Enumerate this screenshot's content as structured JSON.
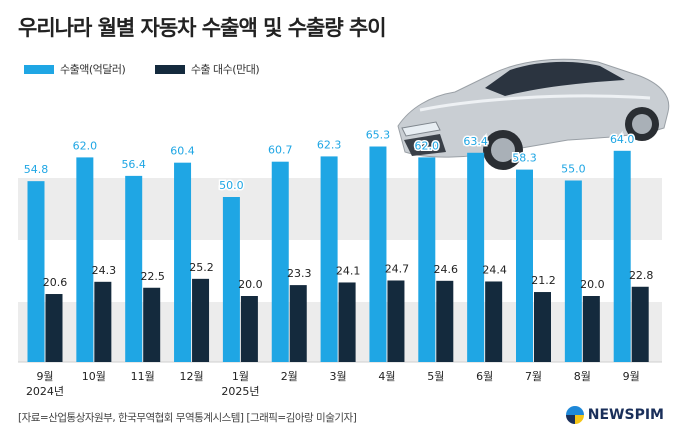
{
  "header": {
    "title": "우리나라 월별 자동차 수출액 및 수출량 추이"
  },
  "legend": [
    {
      "label": "수출액(억달러)",
      "color": "#1fa6e4"
    },
    {
      "label": "수출 대수(만대)",
      "color": "#142a3d"
    }
  ],
  "footer": {
    "source": "[자료=산업통상자원부, 한국무역협회 무역통계시스템] [그래픽=김아랑 미술기자]",
    "logo": "NEWSPIM",
    "logo_colors": {
      "blue": "#1e88d8",
      "yellow": "#f5c518",
      "text": "#1a2f5a"
    }
  },
  "colors": {
    "band": "#ececec",
    "export_value": "#1fa6e4",
    "export_units": "#142a3d",
    "value_label": "#1fa6e4",
    "units_label": "#222222"
  },
  "illustration": "silver-sedan-car",
  "chart_data": {
    "type": "bar",
    "categories": [
      "9월\n2024년",
      "10월",
      "11월",
      "12월",
      "1월\n2025년",
      "2월",
      "3월",
      "4월",
      "5월",
      "6월",
      "7월",
      "8월",
      "9월"
    ],
    "series": [
      {
        "name": "수출액(억달러)",
        "values": [
          54.8,
          62.0,
          56.4,
          60.4,
          50.0,
          60.7,
          62.3,
          65.3,
          62.0,
          63.4,
          58.3,
          55.0,
          64.0
        ]
      },
      {
        "name": "수출 대수(만대)",
        "values": [
          20.6,
          24.3,
          22.5,
          25.2,
          20.0,
          23.3,
          24.1,
          24.7,
          24.6,
          24.4,
          21.2,
          20.0,
          22.8
        ]
      }
    ],
    "value_labels": [
      [
        "54.8",
        "62.0",
        "56.4",
        "60.4",
        "50.0",
        "60.7",
        "62.3",
        "65.3",
        "62.0",
        "63.4",
        "58.3",
        "55.0",
        "64.0"
      ],
      [
        "20.6",
        "24.3",
        "22.5",
        "25.2",
        "20.0",
        "23.3",
        "24.1",
        "24.7",
        "24.6",
        "24.4",
        "21.2",
        "20.0",
        "22.8"
      ]
    ],
    "grid": "alternating-bands",
    "legend_position": "top-left"
  }
}
